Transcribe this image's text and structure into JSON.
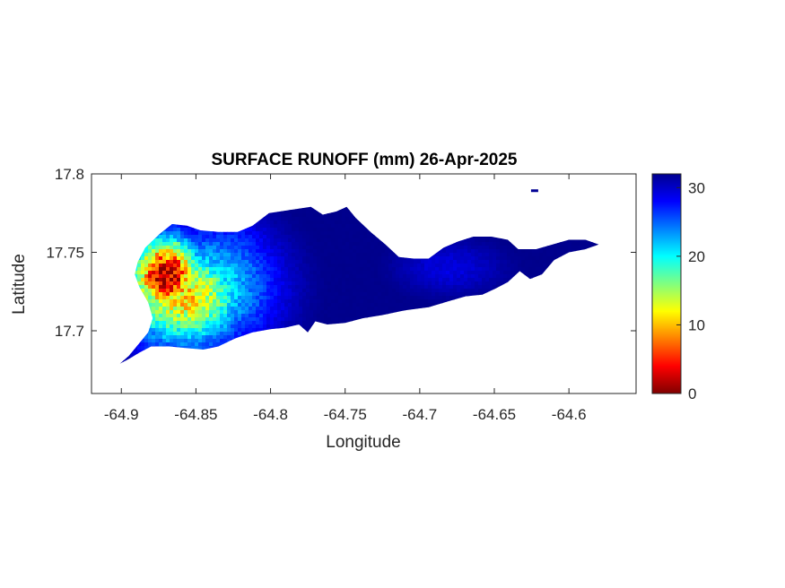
{
  "chart_data": {
    "type": "heatmap",
    "title": "SURFACE RUNOFF (mm) 26-Apr-2025",
    "xlabel": "Longitude",
    "ylabel": "Latitude",
    "xlim": [
      -64.92,
      -64.555
    ],
    "ylim": [
      17.66,
      17.8
    ],
    "x_ticks": [
      -64.9,
      -64.85,
      -64.8,
      -64.75,
      -64.7,
      -64.65,
      -64.6
    ],
    "y_ticks": [
      17.7,
      17.75,
      17.8
    ],
    "x_tick_labels": [
      "-64.9",
      "-64.85",
      "-64.8",
      "-64.75",
      "-64.7",
      "-64.65",
      "-64.6"
    ],
    "y_tick_labels": [
      "17.7",
      "17.75",
      "17.8"
    ],
    "grid": false,
    "colormap": "jet",
    "colorbar": {
      "limits": [
        0,
        32
      ],
      "ticks": [
        0,
        10,
        20,
        30
      ],
      "tick_labels": [
        "0",
        "10",
        "20",
        "30"
      ],
      "colors": [
        "#800000",
        "#ff0000",
        "#ff8000",
        "#ffff00",
        "#80ff80",
        "#00ffff",
        "#0080ff",
        "#0000ff",
        "#000090"
      ]
    },
    "region_outline": [
      [
        -64.901,
        17.679
      ],
      [
        -64.895,
        17.684
      ],
      [
        -64.888,
        17.692
      ],
      [
        -64.882,
        17.699
      ],
      [
        -64.879,
        17.708
      ],
      [
        -64.882,
        17.718
      ],
      [
        -64.888,
        17.728
      ],
      [
        -64.891,
        17.736
      ],
      [
        -64.889,
        17.744
      ],
      [
        -64.884,
        17.753
      ],
      [
        -64.874,
        17.762
      ],
      [
        -64.866,
        17.768
      ],
      [
        -64.856,
        17.767
      ],
      [
        -64.847,
        17.764
      ],
      [
        -64.835,
        17.763
      ],
      [
        -64.822,
        17.763
      ],
      [
        -64.812,
        17.767
      ],
      [
        -64.801,
        17.775
      ],
      [
        -64.787,
        17.777
      ],
      [
        -64.773,
        17.779
      ],
      [
        -64.765,
        17.774
      ],
      [
        -64.756,
        17.776
      ],
      [
        -64.749,
        17.779
      ],
      [
        -64.743,
        17.772
      ],
      [
        -64.733,
        17.763
      ],
      [
        -64.723,
        17.755
      ],
      [
        -64.714,
        17.747
      ],
      [
        -64.704,
        17.746
      ],
      [
        -64.694,
        17.746
      ],
      [
        -64.684,
        17.753
      ],
      [
        -64.674,
        17.757
      ],
      [
        -64.664,
        17.76
      ],
      [
        -64.652,
        17.76
      ],
      [
        -64.641,
        17.758
      ],
      [
        -64.634,
        17.752
      ],
      [
        -64.622,
        17.752
      ],
      [
        -64.611,
        17.755
      ],
      [
        -64.6,
        17.758
      ],
      [
        -64.589,
        17.758
      ],
      [
        -64.58,
        17.755
      ],
      [
        -64.589,
        17.752
      ],
      [
        -64.6,
        17.75
      ],
      [
        -64.61,
        17.745
      ],
      [
        -64.618,
        17.736
      ],
      [
        -64.626,
        17.733
      ],
      [
        -64.633,
        17.738
      ],
      [
        -64.641,
        17.731
      ],
      [
        -64.649,
        17.727
      ],
      [
        -64.658,
        17.723
      ],
      [
        -64.669,
        17.722
      ],
      [
        -64.68,
        17.719
      ],
      [
        -64.694,
        17.715
      ],
      [
        -64.71,
        17.713
      ],
      [
        -64.725,
        17.71
      ],
      [
        -64.738,
        17.708
      ],
      [
        -64.75,
        17.705
      ],
      [
        -64.762,
        17.704
      ],
      [
        -64.77,
        17.706
      ],
      [
        -64.775,
        17.699
      ],
      [
        -64.781,
        17.704
      ],
      [
        -64.79,
        17.702
      ],
      [
        -64.8,
        17.701
      ],
      [
        -64.812,
        17.699
      ],
      [
        -64.824,
        17.695
      ],
      [
        -64.835,
        17.69
      ],
      [
        -64.845,
        17.688
      ],
      [
        -64.857,
        17.689
      ],
      [
        -64.868,
        17.69
      ],
      [
        -64.88,
        17.69
      ],
      [
        -64.888,
        17.686
      ],
      [
        -64.895,
        17.682
      ],
      [
        -64.901,
        17.679
      ]
    ],
    "islet": [
      -64.623,
      17.789
    ],
    "field_peaks": [
      {
        "lon": -64.87,
        "lat": 17.735,
        "value": 31,
        "spread_lon": 0.016,
        "spread_lat": 0.017
      },
      {
        "lon": -64.858,
        "lat": 17.722,
        "value": 21,
        "spread_lon": 0.028,
        "spread_lat": 0.022
      },
      {
        "lon": -64.84,
        "lat": 17.728,
        "value": 12,
        "spread_lon": 0.03,
        "spread_lat": 0.026
      },
      {
        "lon": -64.828,
        "lat": 17.745,
        "value": 7,
        "spread_lon": 0.022,
        "spread_lat": 0.02
      },
      {
        "lon": -64.68,
        "lat": 17.74,
        "value": 3,
        "spread_lon": 0.025,
        "spread_lat": 0.012
      }
    ]
  }
}
